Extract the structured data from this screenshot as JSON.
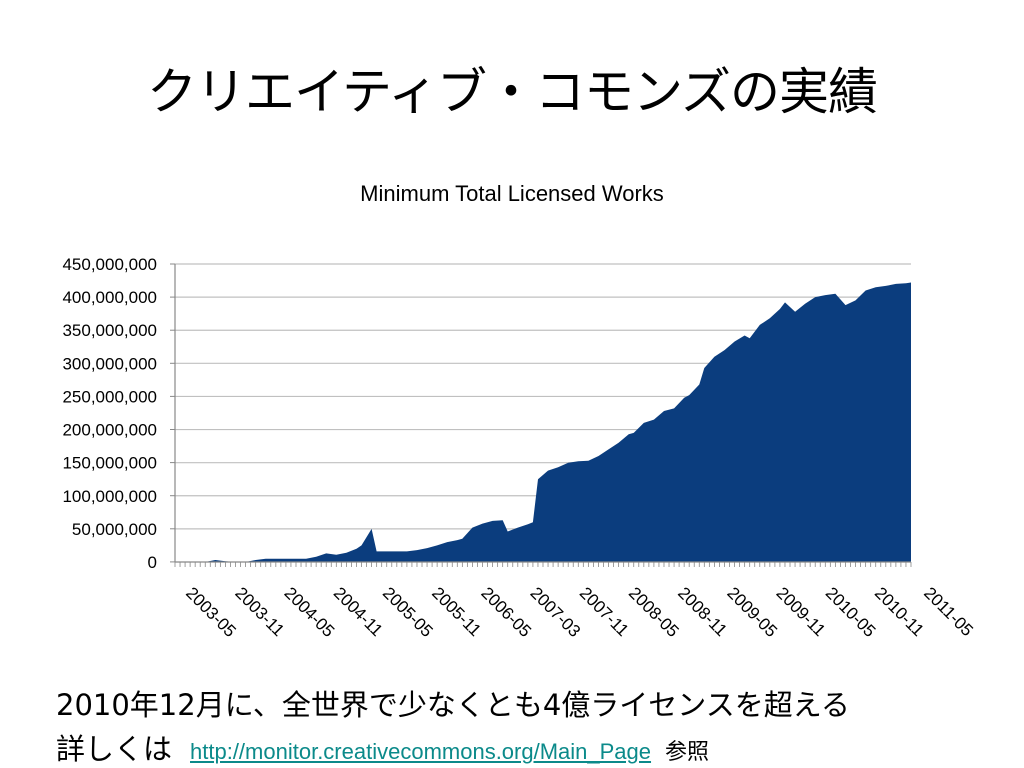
{
  "slide": {
    "title": "クリエイティブ・コモンズの実績",
    "line1": "2010年12月に、全世界で少なくとも4億ライセンスを超える",
    "line2_prefix": "詳しくは",
    "link": "http://monitor.creativecommons.org/Main_Page",
    "line2_suffix": "参照"
  },
  "colors": {
    "area_fill": "#0b3d7e",
    "gridline": "#c0c0c0",
    "link": "#0b8a8a"
  },
  "chart_data": {
    "type": "area",
    "title": "Minimum Total Licensed Works",
    "xlabel": "",
    "ylabel": "",
    "ylim": [
      0,
      450000000
    ],
    "yticks": [
      {
        "value": 0,
        "label": "0"
      },
      {
        "value": 50000000,
        "label": "50,000,000"
      },
      {
        "value": 100000000,
        "label": "100,000,000"
      },
      {
        "value": 150000000,
        "label": "150,000,000"
      },
      {
        "value": 200000000,
        "label": "200,000,000"
      },
      {
        "value": 250000000,
        "label": "250,000,000"
      },
      {
        "value": 300000000,
        "label": "300,000,000"
      },
      {
        "value": 350000000,
        "label": "350,000,000"
      },
      {
        "value": 400000000,
        "label": "400,000,000"
      },
      {
        "value": 450000000,
        "label": "450,000,000"
      }
    ],
    "xtick_labels": [
      "2003-05",
      "2003-11",
      "2004-05",
      "2004-11",
      "2005-05",
      "2005-11",
      "2006-05",
      "2007-03",
      "2007-11",
      "2008-05",
      "2008-11",
      "2009-05",
      "2009-11",
      "2010-05",
      "2010-11",
      "2011-05"
    ],
    "grid": true,
    "legend": "none",
    "series": [
      {
        "points": [
          [
            0,
            0
          ],
          [
            6,
            0
          ],
          [
            8,
            3000000
          ],
          [
            10,
            1000000
          ],
          [
            12,
            0
          ],
          [
            14,
            0
          ],
          [
            16,
            3000000
          ],
          [
            18,
            5000000
          ],
          [
            22,
            5000000
          ],
          [
            26,
            5000000
          ],
          [
            28,
            8000000
          ],
          [
            30,
            13000000
          ],
          [
            32,
            11000000
          ],
          [
            34,
            14000000
          ],
          [
            36,
            20000000
          ],
          [
            37,
            25000000
          ],
          [
            39,
            50000000
          ],
          [
            40,
            16000000
          ],
          [
            43,
            16000000
          ],
          [
            46,
            16000000
          ],
          [
            48,
            18000000
          ],
          [
            50,
            21000000
          ],
          [
            52,
            25000000
          ],
          [
            54,
            30000000
          ],
          [
            56,
            33000000
          ],
          [
            57,
            35000000
          ],
          [
            59,
            52000000
          ],
          [
            61,
            58000000
          ],
          [
            63,
            62000000
          ],
          [
            65,
            63000000
          ],
          [
            66,
            46000000
          ],
          [
            68,
            52000000
          ],
          [
            70,
            57000000
          ],
          [
            71,
            60000000
          ],
          [
            72,
            125000000
          ],
          [
            74,
            138000000
          ],
          [
            76,
            143000000
          ],
          [
            78,
            150000000
          ],
          [
            80,
            152000000
          ],
          [
            82,
            153000000
          ],
          [
            84,
            160000000
          ],
          [
            86,
            170000000
          ],
          [
            88,
            180000000
          ],
          [
            90,
            193000000
          ],
          [
            91,
            195000000
          ],
          [
            93,
            210000000
          ],
          [
            95,
            215000000
          ],
          [
            97,
            228000000
          ],
          [
            99,
            232000000
          ],
          [
            101,
            248000000
          ],
          [
            102,
            252000000
          ],
          [
            104,
            268000000
          ],
          [
            105,
            293000000
          ],
          [
            107,
            310000000
          ],
          [
            109,
            320000000
          ],
          [
            111,
            333000000
          ],
          [
            113,
            342000000
          ],
          [
            114,
            338000000
          ],
          [
            116,
            358000000
          ],
          [
            118,
            368000000
          ],
          [
            120,
            382000000
          ],
          [
            121,
            392000000
          ],
          [
            123,
            378000000
          ],
          [
            125,
            390000000
          ],
          [
            127,
            400000000
          ],
          [
            129,
            403000000
          ],
          [
            131,
            405000000
          ],
          [
            133,
            388000000
          ],
          [
            135,
            395000000
          ],
          [
            137,
            410000000
          ],
          [
            139,
            415000000
          ],
          [
            141,
            417000000
          ],
          [
            143,
            420000000
          ],
          [
            145,
            421000000
          ],
          [
            146,
            422000000
          ]
        ]
      }
    ]
  }
}
